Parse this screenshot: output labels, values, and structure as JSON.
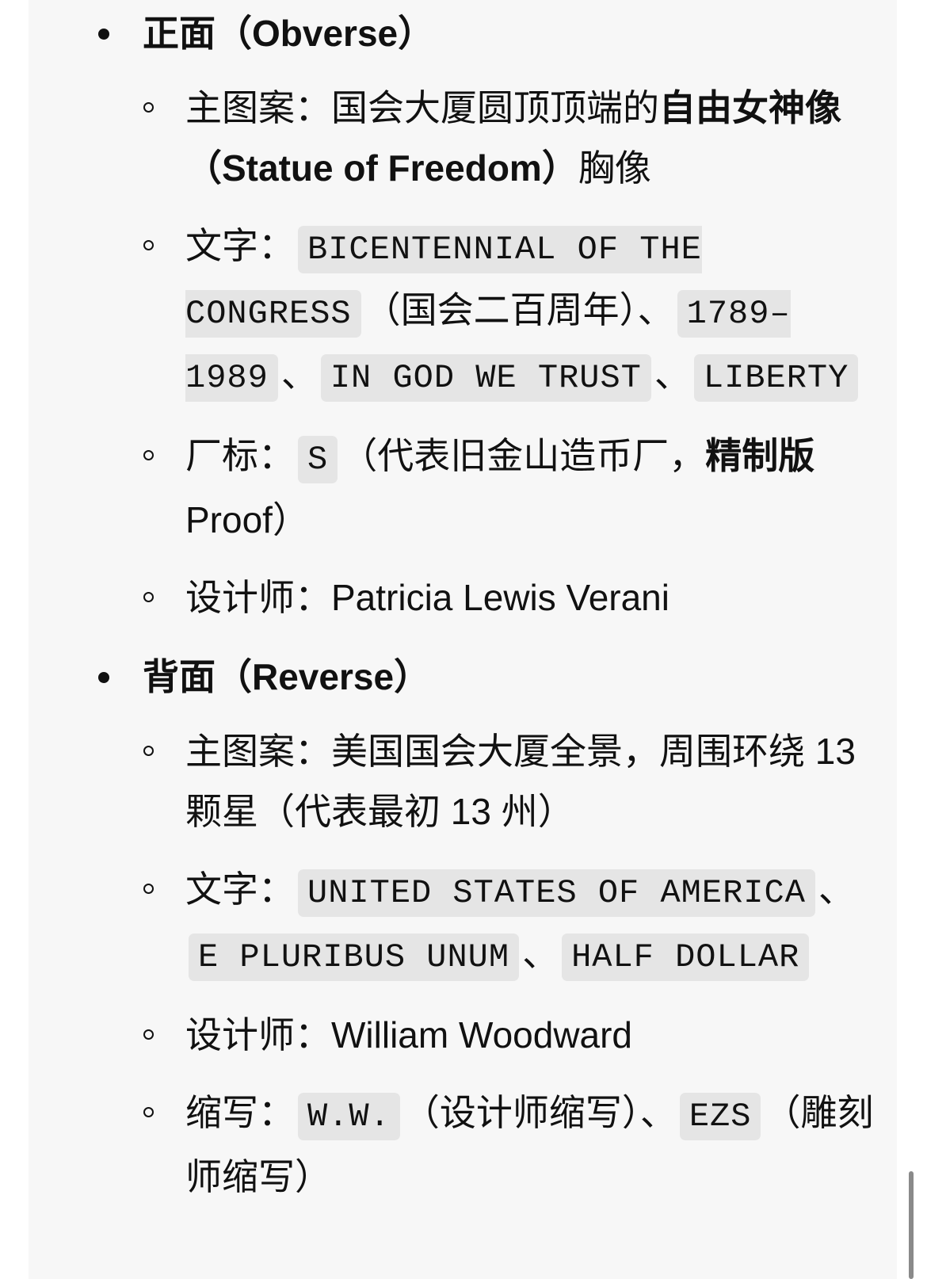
{
  "sections": [
    {
      "heading": "正面（Obverse）",
      "items": [
        {
          "segments": [
            {
              "t": "主图案：国会大厦圆顶顶端的",
              "s": "plain"
            },
            {
              "t": "自由女神像（Statue of Freedom）",
              "s": "bold"
            },
            {
              "t": "胸像",
              "s": "plain"
            }
          ]
        },
        {
          "segments": [
            {
              "t": "文字：",
              "s": "plain"
            },
            {
              "t": "BICENTENNIAL OF THE CONGRESS",
              "s": "code"
            },
            {
              "t": "（国会二百周年）、",
              "s": "plain"
            },
            {
              "t": "1789–1989",
              "s": "code"
            },
            {
              "t": "、",
              "s": "plain"
            },
            {
              "t": "IN GOD WE TRUST",
              "s": "code"
            },
            {
              "t": "、",
              "s": "plain"
            },
            {
              "t": "LIBERTY",
              "s": "code"
            }
          ]
        },
        {
          "segments": [
            {
              "t": "厂标：",
              "s": "plain"
            },
            {
              "t": "S",
              "s": "code"
            },
            {
              "t": "（代表旧金山造币厂，",
              "s": "plain"
            },
            {
              "t": "精制版",
              "s": "bold"
            },
            {
              "t": " Proof）",
              "s": "plain"
            }
          ]
        },
        {
          "segments": [
            {
              "t": "设计师：Patricia Lewis Verani",
              "s": "plain"
            }
          ]
        }
      ]
    },
    {
      "heading": "背面（Reverse）",
      "items": [
        {
          "segments": [
            {
              "t": "主图案：美国国会大厦全景，周围环绕 13 颗星（代表最初 13 州）",
              "s": "plain"
            }
          ]
        },
        {
          "segments": [
            {
              "t": "文字：",
              "s": "plain"
            },
            {
              "t": "UNITED STATES OF AMERICA",
              "s": "code"
            },
            {
              "t": "、",
              "s": "plain"
            },
            {
              "t": "E PLURIBUS UNUM",
              "s": "code"
            },
            {
              "t": "、",
              "s": "plain"
            },
            {
              "t": "HALF DOLLAR",
              "s": "code"
            }
          ]
        },
        {
          "segments": [
            {
              "t": "设计师：William Woodward",
              "s": "plain"
            }
          ]
        },
        {
          "segments": [
            {
              "t": "缩写：",
              "s": "plain"
            },
            {
              "t": "W.W.",
              "s": "code"
            },
            {
              "t": "（设计师缩写）、",
              "s": "plain"
            },
            {
              "t": "EZS",
              "s": "code"
            },
            {
              "t": "（雕刻师缩写）",
              "s": "plain"
            }
          ]
        }
      ]
    }
  ]
}
